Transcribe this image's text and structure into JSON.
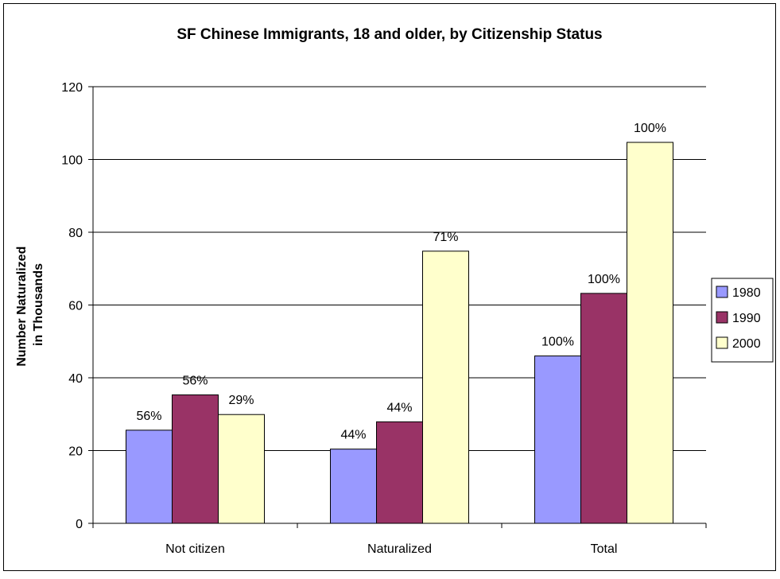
{
  "chart_data": {
    "type": "bar",
    "title": "SF Chinese Immigrants, 18 and older, by Citizenship Status",
    "xlabel": "",
    "ylabel": "Number Naturalized in Thousands",
    "ylabel_lines": [
      "Number Naturalized",
      "in Thousands"
    ],
    "categories": [
      "Not citizen",
      "Naturalized",
      "Total"
    ],
    "ylim": [
      0,
      120
    ],
    "yticks": [
      0,
      20,
      40,
      60,
      80,
      100,
      120
    ],
    "grid": true,
    "legend_position": "right",
    "series": [
      {
        "name": "1980",
        "color": "#9999ff",
        "values": [
          25.6,
          20.4,
          46.0
        ],
        "labels": [
          "56%",
          "44%",
          "100%"
        ]
      },
      {
        "name": "1990",
        "color": "#993366",
        "values": [
          35.3,
          27.9,
          63.2
        ],
        "labels": [
          "56%",
          "44%",
          "100%"
        ]
      },
      {
        "name": "2000",
        "color": "#ffffcc",
        "values": [
          29.9,
          74.8,
          104.7
        ],
        "labels": [
          "29%",
          "71%",
          "100%"
        ]
      }
    ]
  }
}
